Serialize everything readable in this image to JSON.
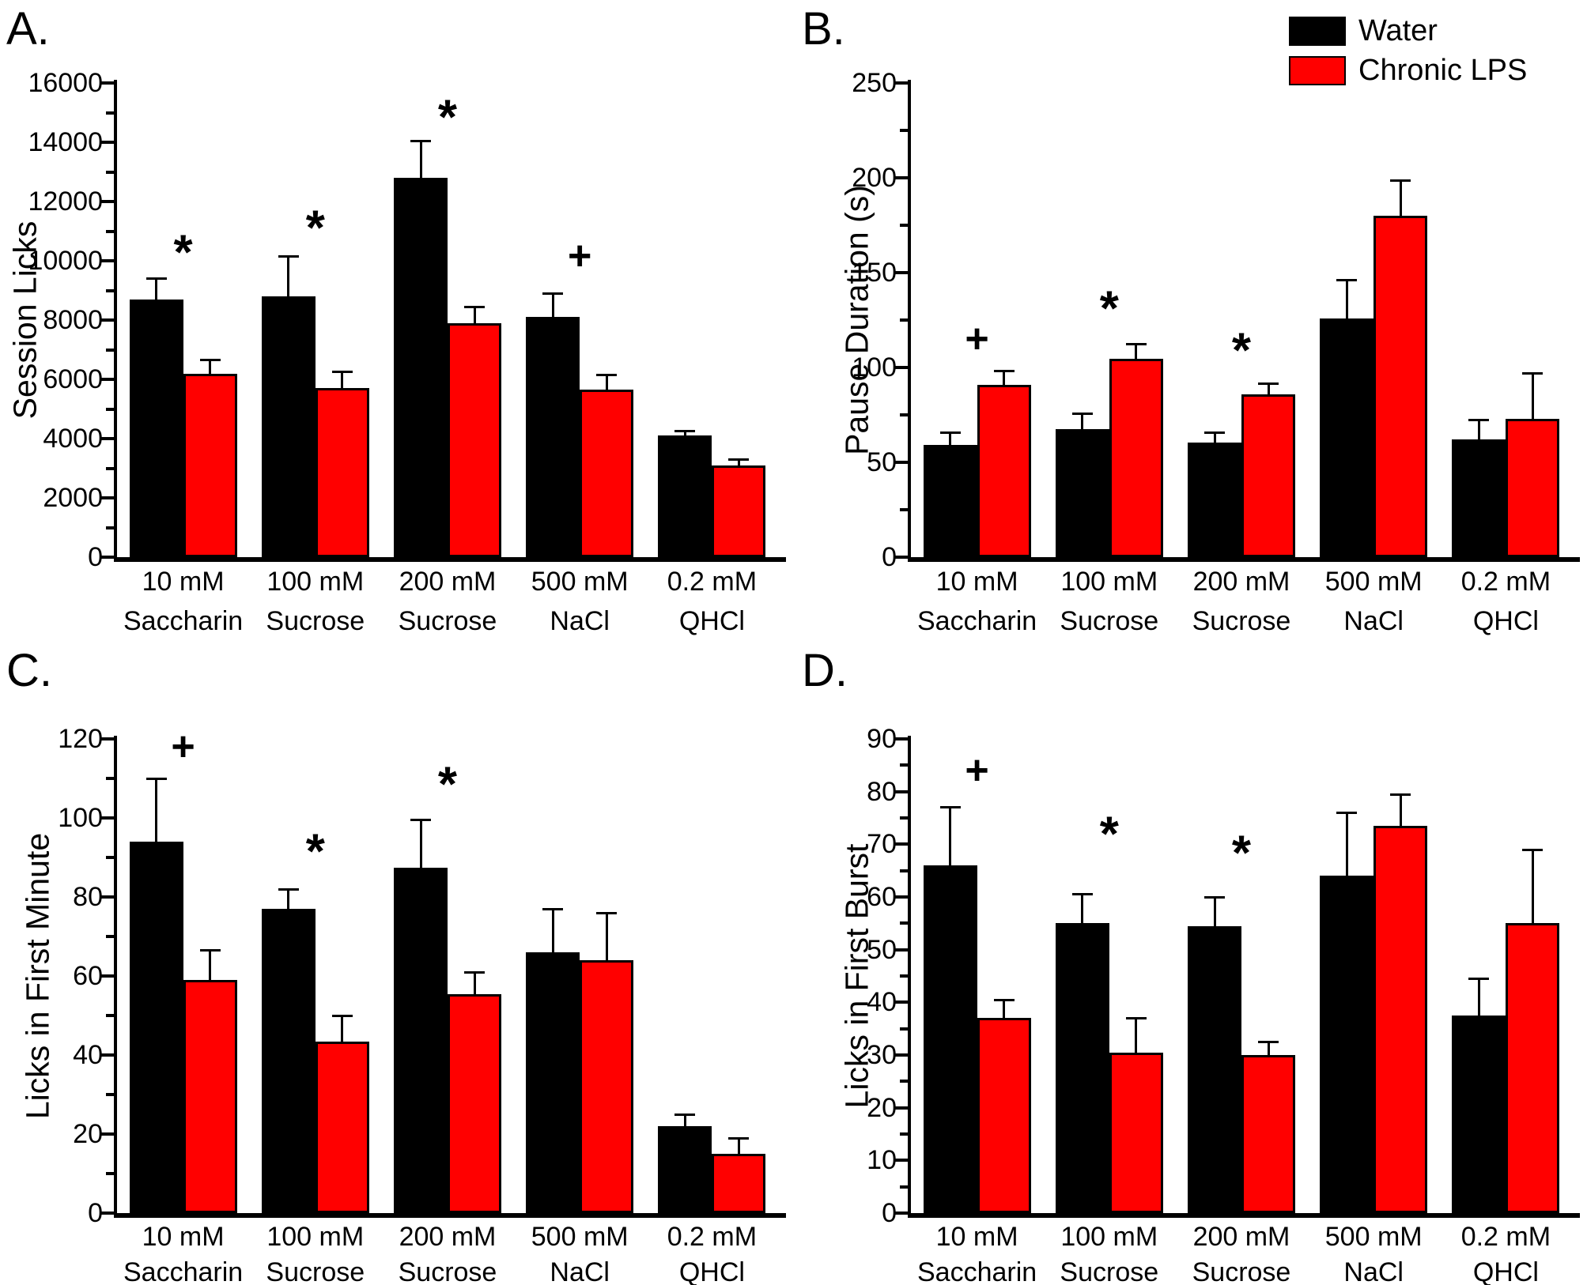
{
  "figure": {
    "background": "#ffffff",
    "accent_colors": {
      "water": "#000000",
      "chronic_lps": "#ff0000",
      "axis": "#000000"
    }
  },
  "legend": {
    "items": [
      {
        "label": "Water",
        "color": "#000000"
      },
      {
        "label": "Chronic LPS",
        "color": "#ff0000"
      }
    ],
    "position": "top-right"
  },
  "category_display": [
    [
      "10 mM",
      "Saccharin"
    ],
    [
      "100 mM",
      "Sucrose"
    ],
    [
      "200 mM",
      "Sucrose"
    ],
    [
      "500 mM",
      "NaCl"
    ],
    [
      "0.2 mM",
      "QHCl"
    ]
  ],
  "chart_data": [
    {
      "panel": "A.",
      "type": "bar",
      "title": "",
      "xlabel": "",
      "ylabel": "Session Licks",
      "ylim": [
        0,
        16000
      ],
      "ytick_step": 2000,
      "yminor_step": 1000,
      "grid": false,
      "categories": [
        "10 mM Saccharin",
        "100 mM Sucrose",
        "200 mM Sucrose",
        "500 mM NaCl",
        "0.2 mM QHCl"
      ],
      "series": [
        {
          "name": "Water",
          "color": "#000000",
          "values": [
            8700,
            8800,
            12800,
            8100,
            4100
          ],
          "errors_up": [
            700,
            1350,
            1250,
            800,
            150
          ]
        },
        {
          "name": "Chronic LPS",
          "color": "#ff0000",
          "values": [
            6200,
            5700,
            7900,
            5650,
            3100
          ],
          "errors_up": [
            450,
            550,
            550,
            500,
            200
          ]
        }
      ],
      "annotations": [
        {
          "symbol": "*",
          "category_index": 0,
          "y": 10480
        },
        {
          "symbol": "*",
          "category_index": 1,
          "y": 11300
        },
        {
          "symbol": "*",
          "category_index": 2,
          "y": 15050
        },
        {
          "symbol": "+",
          "category_index": 3,
          "y": 10150
        }
      ]
    },
    {
      "panel": "B.",
      "type": "bar",
      "title": "",
      "xlabel": "",
      "ylabel": "Pause Duration (s)",
      "ylim": [
        0,
        250
      ],
      "ytick_step": 50,
      "yminor_step": 25,
      "grid": false,
      "categories": [
        "10 mM Saccharin",
        "100 mM Sucrose",
        "200 mM Sucrose",
        "500 mM NaCl",
        "0.2 mM QHCl"
      ],
      "series": [
        {
          "name": "Water",
          "color": "#000000",
          "values": [
            59,
            67.5,
            60.5,
            126,
            62
          ],
          "errors_up": [
            6.5,
            8,
            5,
            20,
            10.5
          ]
        },
        {
          "name": "Chronic LPS",
          "color": "#ff0000",
          "values": [
            91,
            104.5,
            86,
            180,
            73
          ],
          "errors_up": [
            7,
            8,
            5.5,
            18.5,
            24
          ]
        }
      ],
      "annotations": [
        {
          "symbol": "+",
          "category_index": 0,
          "y": 115
        },
        {
          "symbol": "*",
          "category_index": 1,
          "y": 134
        },
        {
          "symbol": "*",
          "category_index": 2,
          "y": 112
        }
      ]
    },
    {
      "panel": "C.",
      "type": "bar",
      "title": "",
      "xlabel": "",
      "ylabel": "Licks in First Minute",
      "ylim": [
        0,
        120
      ],
      "ytick_step": 20,
      "yminor_step": 10,
      "grid": false,
      "categories": [
        "10 mM Saccharin",
        "100 mM Sucrose",
        "200 mM Sucrose",
        "500 mM NaCl",
        "0.2 mM QHCl"
      ],
      "series": [
        {
          "name": "Water",
          "color": "#000000",
          "values": [
            94,
            77,
            87.5,
            66,
            22
          ],
          "errors_up": [
            16,
            5,
            12,
            11,
            3
          ]
        },
        {
          "name": "Chronic LPS",
          "color": "#ff0000",
          "values": [
            59,
            43.5,
            55.5,
            64,
            15
          ],
          "errors_up": [
            7.5,
            6.5,
            5.5,
            12,
            4
          ]
        }
      ],
      "annotations": [
        {
          "symbol": "+",
          "category_index": 0,
          "y": 118
        },
        {
          "symbol": "*",
          "category_index": 1,
          "y": 93
        },
        {
          "symbol": "*",
          "category_index": 2,
          "y": 110
        }
      ]
    },
    {
      "panel": "D.",
      "type": "bar",
      "title": "",
      "xlabel": "",
      "ylabel": "Licks in First Burst",
      "ylim": [
        0,
        90
      ],
      "ytick_step": 10,
      "yminor_step": 5,
      "grid": false,
      "categories": [
        "10 mM Saccharin",
        "100 mM Sucrose",
        "200 mM Sucrose",
        "500 mM NaCl",
        "0.2 mM QHCl"
      ],
      "series": [
        {
          "name": "Water",
          "color": "#000000",
          "values": [
            66,
            55,
            54.5,
            64,
            37.5
          ],
          "errors_up": [
            11,
            5.5,
            5.5,
            12,
            7
          ]
        },
        {
          "name": "Chronic LPS",
          "color": "#ff0000",
          "values": [
            37,
            30.5,
            30,
            73.5,
            55
          ],
          "errors_up": [
            3.5,
            6.5,
            2.5,
            6,
            14
          ]
        }
      ],
      "annotations": [
        {
          "symbol": "+",
          "category_index": 0,
          "y": 84
        },
        {
          "symbol": "*",
          "category_index": 1,
          "y": 73
        },
        {
          "symbol": "*",
          "category_index": 2,
          "y": 69.5
        }
      ]
    }
  ]
}
